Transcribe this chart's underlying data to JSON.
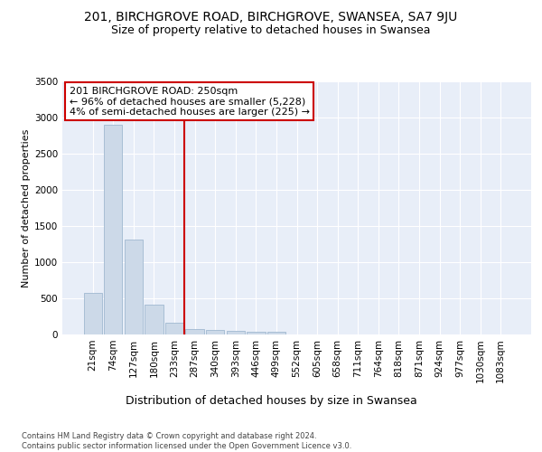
{
  "title_line1": "201, BIRCHGROVE ROAD, BIRCHGROVE, SWANSEA, SA7 9JU",
  "title_line2": "Size of property relative to detached houses in Swansea",
  "xlabel": "Distribution of detached houses by size in Swansea",
  "ylabel": "Number of detached properties",
  "footnote": "Contains HM Land Registry data © Crown copyright and database right 2024.\nContains public sector information licensed under the Open Government Licence v3.0.",
  "bar_labels": [
    "21sqm",
    "74sqm",
    "127sqm",
    "180sqm",
    "233sqm",
    "287sqm",
    "340sqm",
    "393sqm",
    "446sqm",
    "499sqm",
    "552sqm",
    "605sqm",
    "658sqm",
    "711sqm",
    "764sqm",
    "818sqm",
    "871sqm",
    "924sqm",
    "977sqm",
    "1030sqm",
    "1083sqm"
  ],
  "bar_values": [
    575,
    2900,
    1310,
    415,
    160,
    80,
    60,
    50,
    40,
    35,
    0,
    0,
    0,
    0,
    0,
    0,
    0,
    0,
    0,
    0,
    0
  ],
  "bar_color": "#ccd9e8",
  "bar_edgecolor": "#a0b8d0",
  "vline_x": 4.5,
  "vline_color": "#cc0000",
  "annotation_text": "201 BIRCHGROVE ROAD: 250sqm\n← 96% of detached houses are smaller (5,228)\n4% of semi-detached houses are larger (225) →",
  "annotation_box_facecolor": "#ffffff",
  "annotation_box_edgecolor": "#cc0000",
  "ylim": [
    0,
    3500
  ],
  "yticks": [
    0,
    500,
    1000,
    1500,
    2000,
    2500,
    3000,
    3500
  ],
  "figure_facecolor": "#ffffff",
  "plot_facecolor": "#e8eef8",
  "grid_color": "#ffffff",
  "title_fontsize": 10,
  "subtitle_fontsize": 9,
  "axis_label_fontsize": 9,
  "ylabel_fontsize": 8,
  "tick_fontsize": 7.5,
  "footnote_fontsize": 6,
  "annotation_fontsize": 8
}
